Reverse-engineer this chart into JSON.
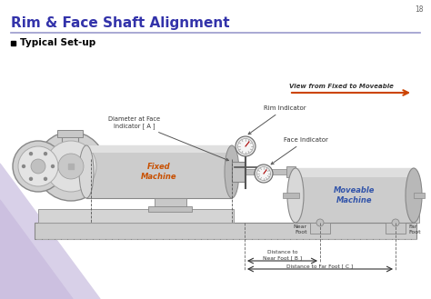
{
  "title": "Rim & Face Shaft Alignment",
  "subtitle": "Typical Set-up",
  "title_color": "#3333aa",
  "page_number": "18",
  "labels": {
    "rim_indicator": "Rim Indicator",
    "face_indicator": "Face Indicator",
    "diameter_face": "Diameter at Face\nIndicator [ A ]",
    "fixed_machine": "Fixed\nMachine",
    "moveable_machine": "Moveable\nMachine",
    "near_foot": "Near\nFoot",
    "far_foot": "Far\nFoot",
    "view_arrow": "View from Fixed to Moveable",
    "dist_near": "Distance to\nNear Foot [ B ]",
    "dist_far": "Distance to Far Foot [ C ]"
  },
  "colors": {
    "fixed_text": "#c85000",
    "moveable_text": "#3355aa",
    "arrow_color": "#cc4400",
    "title_line": "#9999cc"
  }
}
